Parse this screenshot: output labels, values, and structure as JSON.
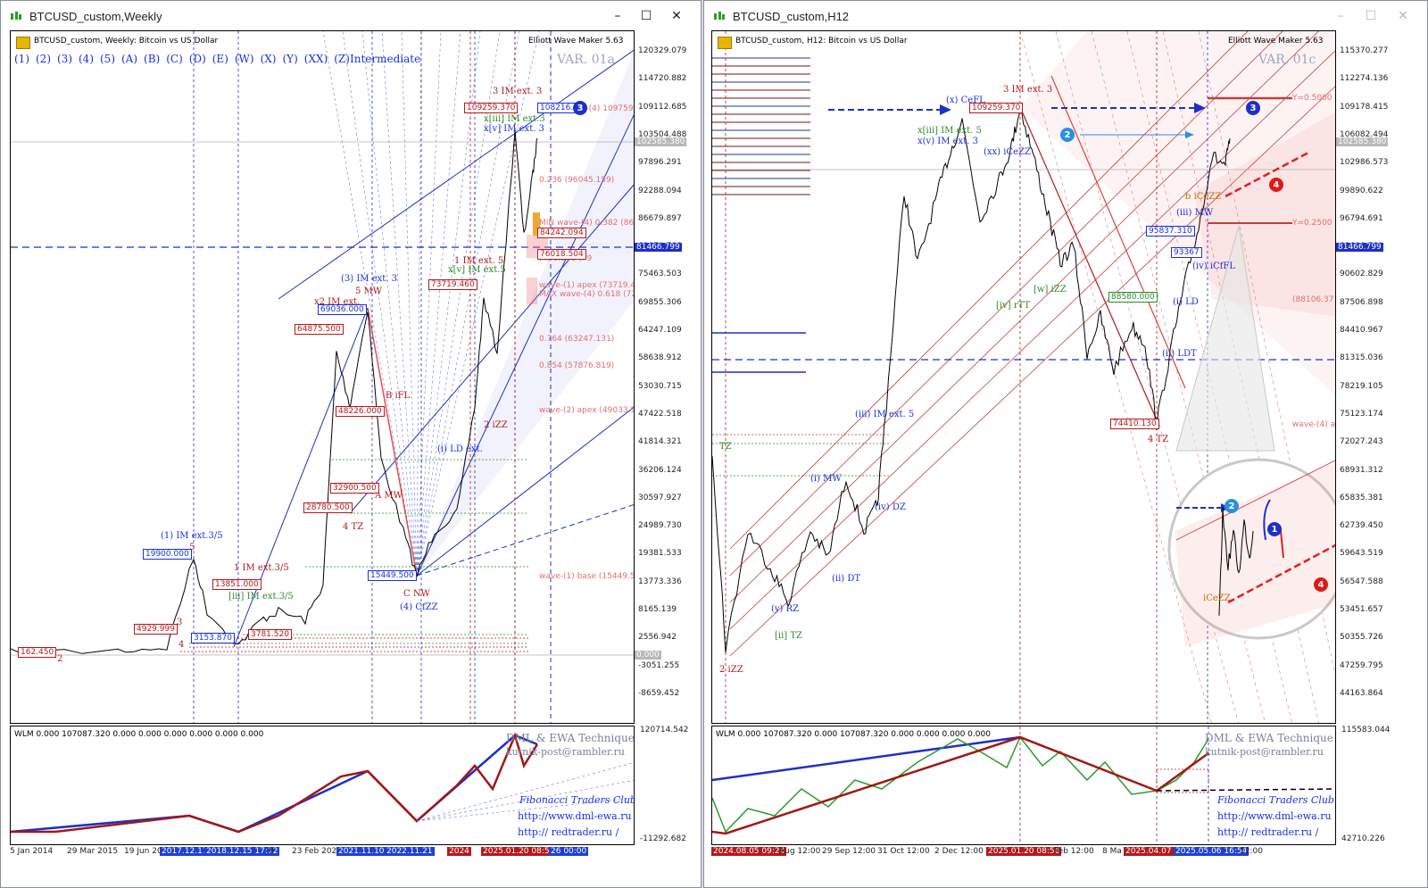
{
  "left": {
    "title": "BTCUSD_custom,Weekly",
    "header": "BTCUSD_custom, Weekly:  Bitcoin vs US Dollar",
    "indicator": "Elliott Wave Maker 5.63",
    "wave_buttons": [
      "(1)",
      "(2)",
      "(3)",
      "(4)",
      "(5)",
      "(A)",
      "(B)",
      "(C)",
      "(D)",
      "(E)",
      "(W)",
      "(X)",
      "(Y)",
      "(XX)",
      "(Z)"
    ],
    "degree": "Intermediate",
    "variant": "VAR. 01a",
    "y_ticks": [
      "120329.079",
      "114720.882",
      "109112.685",
      "103504.488",
      "97896.291",
      "92288.094",
      "86679.897",
      "81071.700",
      "75463.503",
      "69855.306",
      "64247.109",
      "58638.912",
      "53030.715",
      "47422.518",
      "41814.321",
      "36206.124",
      "30597.927",
      "24989.730",
      "19381.533",
      "13773.336",
      "8165.139",
      "2556.942",
      "-3051.255",
      "-8659.452"
    ],
    "price_current": "102585.380",
    "price_level": "81466.799",
    "price_zero": "0.000",
    "ind_header": "WLM 0.000 107087.320 0.000 0.000 0.000 0.000 0.000 0.000",
    "ind_y_top": "120714.542",
    "ind_y_bottom": "-11292.682",
    "x_labels": [
      "5 Jan 2014",
      "29 Mar 2015",
      "19 Jun 20",
      "2017.12.17",
      "2018.12.15 17:12",
      "8",
      "23 Feb 2020",
      "2021.11.10",
      "2022.11.21",
      "2024",
      "2025.01.20 08:56",
      "26 00:00"
    ],
    "footer": {
      "title": "DML & EWA Technique",
      "email": "kutnik-post@rambler.ru",
      "club": "Fibonacci   Traders   Club",
      "url1": "http://www.dml-ewa.ru",
      "url2": "http://  redtrader.ru  /"
    },
    "labels": [
      {
        "text": "3 IM ext. 3",
        "color": "#b4181b"
      },
      {
        "text": "1 IM ext. 5",
        "color": "#b4181b"
      },
      {
        "text": "(3) IM ext. 3",
        "color": "#1a2fe0"
      },
      {
        "text": "x2 IM ext.",
        "color": "#b4181b"
      },
      {
        "text": "5 MW",
        "color": "#b4181b"
      },
      {
        "text": "(1) IM ext.3/5",
        "color": "#1a2fe0"
      },
      {
        "text": "1 IM ext.3/5",
        "color": "#b4181b"
      },
      {
        "text": "B iFL",
        "color": "#b4181b"
      },
      {
        "text": "A MW",
        "color": "#b4181b"
      },
      {
        "text": "4 TZ",
        "color": "#b4181b"
      },
      {
        "text": "2 iZZ",
        "color": "#b4181b"
      },
      {
        "text": "C NW",
        "color": "#b4181b"
      },
      {
        "text": "(4) CfZZ",
        "color": "#1a2fe0"
      },
      {
        "text": "(i) LD ext.",
        "color": "#1a2fe0"
      },
      {
        "text": "2",
        "color": "#b4181b"
      },
      {
        "text": "4",
        "color": "#b4181b"
      },
      {
        "text": "3",
        "color": "#b4181b"
      },
      {
        "text": "5",
        "color": "#b4181b"
      },
      {
        "text": "x[v] IM ext.5",
        "color": "#2a8a2a"
      },
      {
        "text": "x[iii] IM ext.3",
        "color": "#2a8a2a"
      },
      {
        "text": "x[v] IM ext. 3",
        "color": "#1a2fe0"
      },
      {
        "text": "[iii] IM ext.3/5",
        "color": "#2a8a2a"
      }
    ],
    "fibo_labels": [
      "0.236 (96045.159)",
      "MIN wave-(4) 0.382 (86",
      "(4) 0.500 (79",
      "MAX wave-(4) 0.618 (72",
      "wave-(1) apex (73719.4",
      "0.764 (63247.131)",
      "0.854 (57876.819)",
      "wave-(2) apex (49033.9",
      "wave-(1) base (15449.5",
      "0.000 wave-(4) 109759.0"
    ],
    "price_boxes": [
      {
        "text": "109259.370",
        "color": "#b4181b"
      },
      {
        "text": "108216.7",
        "color": "#1a2fe0"
      },
      {
        "text": "84242.094",
        "color": "#b4181b"
      },
      {
        "text": "76018.504",
        "color": "#b4181b"
      },
      {
        "text": "73719.460",
        "color": "#b4181b"
      },
      {
        "text": "69036.000",
        "color": "#1a2fe0"
      },
      {
        "text": "64875.500",
        "color": "#b4181b"
      },
      {
        "text": "48226.000",
        "color": "#b4181b"
      },
      {
        "text": "32900.500",
        "color": "#b4181b"
      },
      {
        "text": "28780.500",
        "color": "#b4181b"
      },
      {
        "text": "19900.000",
        "color": "#1a2fe0"
      },
      {
        "text": "15449.500",
        "color": "#1a2fe0"
      },
      {
        "text": "13851.000",
        "color": "#b4181b"
      },
      {
        "text": "4929.999",
        "color": "#b4181b"
      },
      {
        "text": "3153.870",
        "color": "#1a2fe0"
      },
      {
        "text": "3781.520",
        "color": "#b4181b"
      },
      {
        "text": "162.450",
        "color": "#b4181b"
      }
    ]
  },
  "right": {
    "title": "BTCUSD_custom,H12",
    "header": "BTCUSD_custom, H12:  Bitcoin vs US Dollar",
    "indicator": "Elliott Wave Maker 5.63",
    "variant": "VAR. 01c",
    "y_ticks": [
      "115370.277",
      "112274.136",
      "109178.415",
      "106082.494",
      "102986.573",
      "99890.622",
      "96794.691",
      "93698.760",
      "90602.829",
      "87506.898",
      "84410.967",
      "81315.036",
      "78219.105",
      "75123.174",
      "72027.243",
      "68931.312",
      "65835.381",
      "62739.450",
      "59643.519",
      "56547.588",
      "53451.657",
      "50355.726",
      "47259.795",
      "44163.864"
    ],
    "price_current": "102585.380",
    "price_level": "81466.799",
    "ind_header": "WLM 0.000 107087.320 0.000 107087.320 0.000 0.000 0.000 0.000",
    "ind_y_top": "115583.044",
    "ind_y_bottom": "42710.226",
    "x_labels": [
      "2024.08.05 09:24",
      "Aug 12:00",
      "29 Sep 12:00",
      "31 Oct 12:00",
      "2 Dec 12:00",
      "2025.01.20 08:56",
      "Feb 12:00",
      "8 Ma",
      "2025.04.07 13",
      "2025.05.06 16:54",
      "12:00"
    ],
    "footer": {
      "title": "DML & EWA Technique",
      "email": "kutnik-post@rambler.ru",
      "club": "Fibonacci   Traders   Club",
      "url1": "http://www.dml-ewa.ru",
      "url2": "http://  redtrader.ru  /"
    },
    "labels": [
      {
        "text": "3 IM ext. 3",
        "color": "#b4181b"
      },
      {
        "text": "(x) CeFL",
        "color": "#1a2fe0"
      },
      {
        "text": "x[iii] IM ext. 5",
        "color": "#2a8a2a"
      },
      {
        "text": "x(v) IM ext. 3",
        "color": "#1a2fe0"
      },
      {
        "text": "(xx) iCeZZ",
        "color": "#1a2fe0"
      },
      {
        "text": "(iii) IM ext. 5",
        "color": "#1a2fe0"
      },
      {
        "text": "(i) MW",
        "color": "#1a2fe0"
      },
      {
        "text": "(ii) DT",
        "color": "#1a2fe0"
      },
      {
        "text": "(iv) DZ",
        "color": "#1a2fe0"
      },
      {
        "text": "(y) RZ",
        "color": "#1a2fe0"
      },
      {
        "text": "[ii] TZ",
        "color": "#2a8a2a"
      },
      {
        "text": "2 iZZ",
        "color": "#b4181b"
      },
      {
        "text": "[iv] rTT",
        "color": "#2a8a2a"
      },
      {
        "text": "[w] iZZ",
        "color": "#2a8a2a"
      },
      {
        "text": "4 TZ",
        "color": "#b4181b"
      },
      {
        "text": "(i) LD",
        "color": "#1a2fe0"
      },
      {
        "text": "(iii) MW",
        "color": "#1a2fe0"
      },
      {
        "text": "(iv) iCfFL",
        "color": "#1a2fe0"
      },
      {
        "text": "b iCeZZ",
        "color": "#c76a00"
      },
      {
        "text": "iCeZZ",
        "color": "#c76a00"
      },
      {
        "text": "(ii) LDT",
        "color": "#1a2fe0"
      },
      {
        "text": "TZ",
        "color": "#2a8a2a"
      }
    ],
    "fibo_labels": [
      "Y=0.5000",
      "Y=0.2500",
      "(88106.37",
      "wave-(4) a"
    ],
    "price_boxes": [
      {
        "text": "109259.370",
        "color": "#b4181b"
      },
      {
        "text": "95837.310",
        "color": "#1a2fe0"
      },
      {
        "text": "93367",
        "color": "#1a2fe0"
      },
      {
        "text": "88580.000",
        "color": "#2a8a2a"
      },
      {
        "text": "74410.130",
        "color": "#b4181b"
      }
    ]
  },
  "badges": [
    {
      "num": "3",
      "color": "#1d2fc8"
    },
    {
      "num": "2",
      "color": "#2a8fe0"
    },
    {
      "num": "4",
      "color": "#e01818"
    },
    {
      "num": "1",
      "color": "#1d2fc8"
    }
  ],
  "colors": {
    "bull": "#1a2fe0",
    "bear": "#b4181b",
    "impulse": "#2a8a2a",
    "chart_bg": "#ffffff"
  }
}
